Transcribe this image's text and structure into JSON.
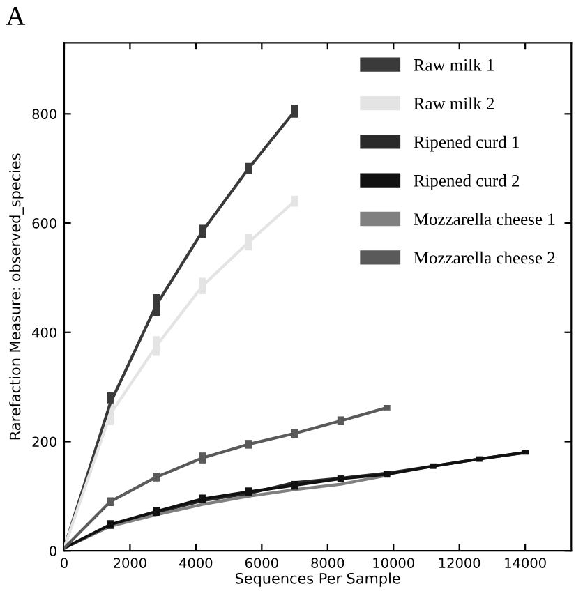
{
  "chart_data": {
    "type": "line",
    "xlabel": "Sequences Per Sample",
    "ylabel": "Rarefaction Measure: observed_species",
    "annotations": [
      "A"
    ],
    "x": [
      0,
      1400,
      2800,
      4200,
      5600,
      7000,
      8400,
      9800,
      11200,
      12600,
      14000
    ],
    "series": [
      {
        "name": "Raw milk 1",
        "color": "#3a3a3a",
        "values": [
          5,
          270,
          450,
          585,
          700,
          805,
          null,
          null,
          null,
          null,
          null
        ],
        "errors": [
          null,
          20,
          20,
          12,
          10,
          12,
          null,
          null,
          null,
          null,
          null
        ]
      },
      {
        "name": "Raw milk 2",
        "color": "#e4e4e4",
        "values": [
          5,
          250,
          375,
          485,
          565,
          640,
          null,
          null,
          null,
          null,
          null
        ],
        "errors": [
          null,
          20,
          18,
          15,
          15,
          10,
          null,
          null,
          null,
          null,
          null
        ]
      },
      {
        "name": "Ripened curd 1",
        "color": "#2a2a2a",
        "values": [
          5,
          46,
          70,
          92,
          105,
          125,
          133,
          142,
          155,
          168,
          180
        ]
      },
      {
        "name": "Ripened curd 2",
        "color": "#111111",
        "values": [
          5,
          48,
          72,
          95,
          108,
          120,
          132,
          140,
          155,
          168,
          180
        ],
        "errors": [
          null,
          8,
          8,
          8,
          8,
          8,
          6,
          6,
          5,
          5,
          4
        ]
      },
      {
        "name": "Mozzarella cheese 1",
        "color": "#808080",
        "values": [
          5,
          45,
          66,
          85,
          100,
          112,
          122,
          138,
          null,
          null,
          null
        ]
      },
      {
        "name": "Mozzarella cheese 2",
        "color": "#5a5a5a",
        "values": [
          5,
          90,
          135,
          170,
          195,
          215,
          238,
          262,
          null,
          null,
          null
        ],
        "errors": [
          null,
          8,
          8,
          10,
          8,
          8,
          8,
          5,
          null,
          null,
          null
        ]
      }
    ],
    "xlim": [
      0,
      15400
    ],
    "ylim": [
      0,
      930
    ],
    "xticks": [
      0,
      2000,
      4000,
      6000,
      8000,
      10000,
      12000,
      14000
    ],
    "yticks": [
      0,
      200,
      400,
      600,
      800
    ],
    "grid": false,
    "legend": "top right",
    "marker": "none",
    "line_style": "solid"
  }
}
